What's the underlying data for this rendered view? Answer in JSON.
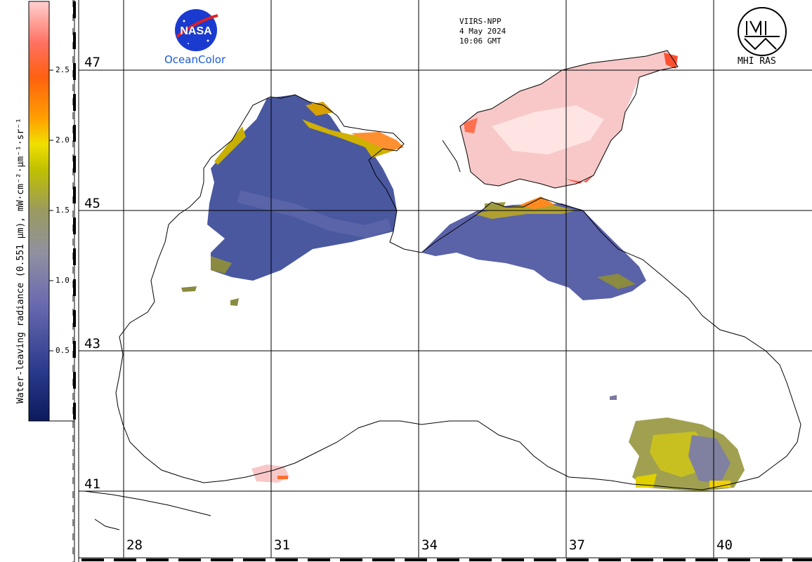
{
  "satellite": {
    "sensor": "VIIRS-NPP",
    "date": "4 May 2024",
    "time": "10:06 GMT"
  },
  "logos": {
    "nasa_label": "NASA",
    "ocean_color_label": "OceanColor",
    "mhi_label": "MHI RAS"
  },
  "colorbar": {
    "title": "Water-leaving radiance (0.551 µm), mW·cm⁻²·µm⁻¹·sr⁻¹",
    "range": [
      0,
      3.0
    ],
    "ticks": [
      "2.5",
      "2.0",
      "1.5",
      "1.0",
      "0.5"
    ],
    "colors": [
      "#0a1a5c",
      "#4a5aa8",
      "#8a8aa8",
      "#9a9a40",
      "#e0e000",
      "#ff8000",
      "#ff5020",
      "#ffb0b0"
    ]
  },
  "grid": {
    "latitudes": [
      "47",
      "45",
      "43",
      "41"
    ],
    "longitudes": [
      "28",
      "31",
      "34",
      "37",
      "40"
    ]
  },
  "region": "Black Sea and Sea of Azov",
  "palette": {
    "deep_blue": "#4a5aa8",
    "olive": "#8a8a40",
    "yellow": "#d0c000",
    "orange": "#ff8020",
    "pink": "#f8c8c8",
    "coast": "#000000"
  }
}
